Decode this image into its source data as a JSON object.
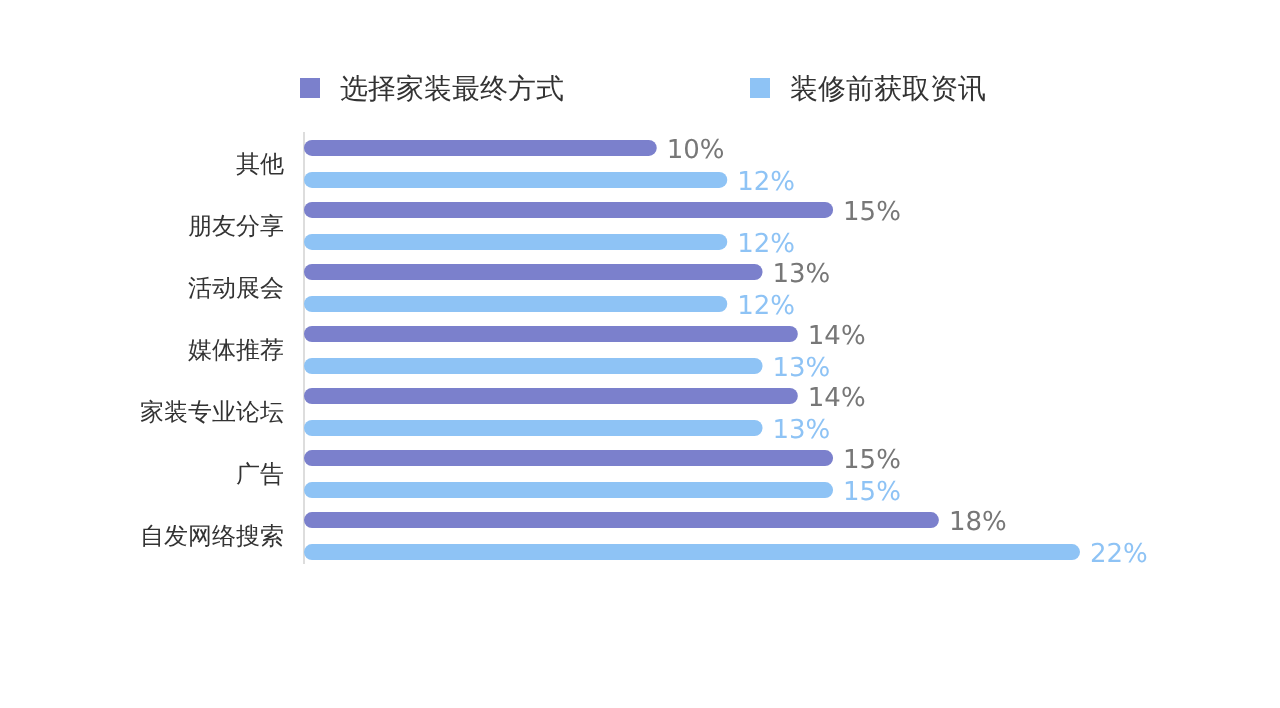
{
  "chart_data": {
    "type": "bar",
    "orientation": "horizontal",
    "categories": [
      "其他",
      "朋友分享",
      "活动展会",
      "媒体推荐",
      "家装专业论坛",
      "广告",
      "自发网络搜索"
    ],
    "series": [
      {
        "name": "选择家装最终方式",
        "color": "#7b80cc",
        "values": [
          10,
          15,
          13,
          14,
          14,
          15,
          18
        ],
        "value_labels": [
          "10%",
          "15%",
          "13%",
          "14%",
          "14%",
          "15%",
          "18%"
        ]
      },
      {
        "name": "装修前获取资讯",
        "color": "#8ec3f5",
        "values": [
          12,
          12,
          12,
          13,
          13,
          15,
          22
        ],
        "value_labels": [
          "12%",
          "12%",
          "12%",
          "13%",
          "13%",
          "15%",
          "22%"
        ]
      }
    ],
    "legend": "top",
    "grid": false
  }
}
